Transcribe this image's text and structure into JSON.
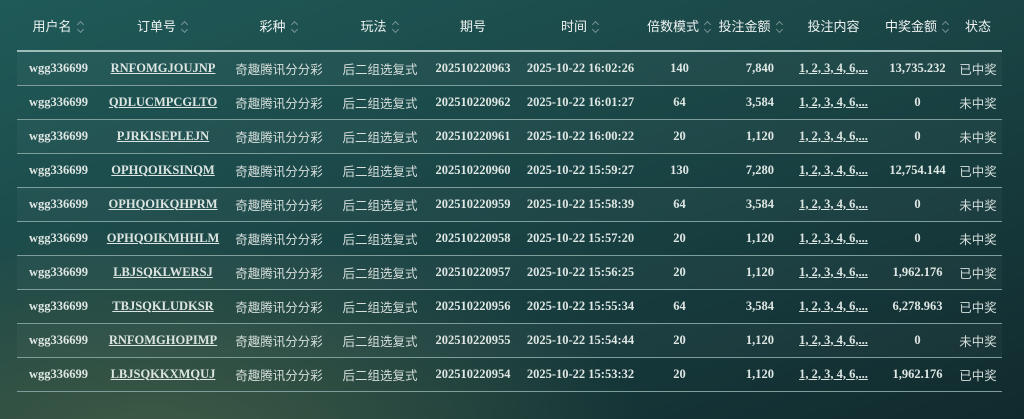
{
  "table": {
    "headers": [
      {
        "label": "用户名",
        "sortable": true
      },
      {
        "label": "订单号",
        "sortable": true
      },
      {
        "label": "彩种",
        "sortable": true
      },
      {
        "label": "玩法",
        "sortable": true
      },
      {
        "label": "期号",
        "sortable": false
      },
      {
        "label": "时间",
        "sortable": true
      },
      {
        "label": "倍数模式",
        "sortable": true
      },
      {
        "label": "投注金额",
        "sortable": true
      },
      {
        "label": "投注内容",
        "sortable": false
      },
      {
        "label": "中奖金额",
        "sortable": true
      },
      {
        "label": "状态",
        "sortable": false
      }
    ],
    "rows": [
      [
        "wgg336699",
        "RNFOMGJOUJNP",
        "奇趣腾讯分分彩",
        "后二组选复式",
        "202510220963",
        "2025-10-22 16:02:26",
        "140",
        "7,840",
        "1, 2, 3, 4, 6,...",
        "13,735.232",
        "已中奖"
      ],
      [
        "wgg336699",
        "QDLUCMPCGLTO",
        "奇趣腾讯分分彩",
        "后二组选复式",
        "202510220962",
        "2025-10-22 16:01:27",
        "64",
        "3,584",
        "1, 2, 3, 4, 6,...",
        "0",
        "未中奖"
      ],
      [
        "wgg336699",
        "PJRKISEPLEJN",
        "奇趣腾讯分分彩",
        "后二组选复式",
        "202510220961",
        "2025-10-22 16:00:22",
        "20",
        "1,120",
        "1, 2, 3, 4, 6,...",
        "0",
        "未中奖"
      ],
      [
        "wgg336699",
        "OPHQOIKSINQM",
        "奇趣腾讯分分彩",
        "后二组选复式",
        "202510220960",
        "2025-10-22 15:59:27",
        "130",
        "7,280",
        "1, 2, 3, 4, 6,...",
        "12,754.144",
        "已中奖"
      ],
      [
        "wgg336699",
        "OPHQOIKQHPRM",
        "奇趣腾讯分分彩",
        "后二组选复式",
        "202510220959",
        "2025-10-22 15:58:39",
        "64",
        "3,584",
        "1, 2, 3, 4, 6,...",
        "0",
        "未中奖"
      ],
      [
        "wgg336699",
        "OPHQOIKMHHLM",
        "奇趣腾讯分分彩",
        "后二组选复式",
        "202510220958",
        "2025-10-22 15:57:20",
        "20",
        "1,120",
        "1, 2, 3, 4, 6,...",
        "0",
        "未中奖"
      ],
      [
        "wgg336699",
        "LBJSQKLWERSJ",
        "奇趣腾讯分分彩",
        "后二组选复式",
        "202510220957",
        "2025-10-22 15:56:25",
        "20",
        "1,120",
        "1, 2, 3, 4, 6,...",
        "1,962.176",
        "已中奖"
      ],
      [
        "wgg336699",
        "TBJSQKLUDKSR",
        "奇趣腾讯分分彩",
        "后二组选复式",
        "202510220956",
        "2025-10-22 15:55:34",
        "64",
        "3,584",
        "1, 2, 3, 4, 6,...",
        "6,278.963",
        "已中奖"
      ],
      [
        "wgg336699",
        "RNFOMGHOPIMP",
        "奇趣腾讯分分彩",
        "后二组选复式",
        "202510220955",
        "2025-10-22 15:54:44",
        "20",
        "1,120",
        "1, 2, 3, 4, 6,...",
        "0",
        "未中奖"
      ],
      [
        "wgg336699",
        "LBJSQKKXMQUJ",
        "奇趣腾讯分分彩",
        "后二组选复式",
        "202510220954",
        "2025-10-22 15:53:32",
        "20",
        "1,120",
        "1, 2, 3, 4, 6,...",
        "1,962.176",
        "已中奖"
      ]
    ]
  },
  "icons": {
    "sort": "sort-up-down-icon"
  }
}
